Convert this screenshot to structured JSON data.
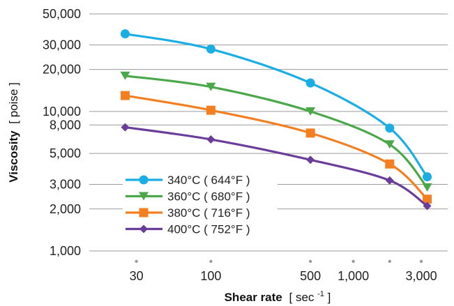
{
  "chart_data": {
    "type": "line",
    "xlabel": {
      "main": "Shear rate",
      "unit_open": "[ sec",
      "unit_sup": "-1",
      "unit_close": " ]"
    },
    "ylabel": {
      "main": "Viscosity",
      "unit": "[ poise ]"
    },
    "x_scale": "log",
    "y_scale": "log",
    "xlim": [
      14,
      4600
    ],
    "ylim": [
      1000,
      50000
    ],
    "x_ticks": [
      {
        "value": 30,
        "label": "30"
      },
      {
        "value": 100,
        "label": "100"
      },
      {
        "value": 500,
        "label": "500"
      },
      {
        "value": 1000,
        "label": "1,000"
      },
      {
        "value": 3000,
        "label": "3,000"
      }
    ],
    "x_tick_dots": [
      30,
      100,
      500,
      1000,
      1800,
      3000
    ],
    "y_ticks": [
      {
        "value": 50000,
        "label": "50,000"
      },
      {
        "value": 30000,
        "label": "30,000"
      },
      {
        "value": 20000,
        "label": "20,000"
      },
      {
        "value": 10000,
        "label": "10,000"
      },
      {
        "value": 8000,
        "label": "8,000"
      },
      {
        "value": 5000,
        "label": "5,000"
      },
      {
        "value": 3000,
        "label": "3,000"
      },
      {
        "value": 2000,
        "label": "2,000"
      },
      {
        "value": 1000,
        "label": "1,000"
      }
    ],
    "grid": "horizontal",
    "legend_position": "bottom-left",
    "series": [
      {
        "name": "340°C ( 644°F )",
        "color": "#1aaee5",
        "marker": "circle",
        "x": [
          25,
          100,
          500,
          1800,
          3300
        ],
        "y": [
          36000,
          28000,
          16000,
          7600,
          3400
        ]
      },
      {
        "name": "360°C ( 680°F )",
        "color": "#4aa84a",
        "marker": "triangle-down",
        "x": [
          25,
          100,
          500,
          1800,
          3300
        ],
        "y": [
          18000,
          15000,
          10000,
          5800,
          2850
        ]
      },
      {
        "name": "380°C ( 716°F )",
        "color": "#f47f20",
        "marker": "square",
        "x": [
          25,
          100,
          500,
          1800,
          3300
        ],
        "y": [
          13000,
          10200,
          7000,
          4200,
          2350
        ]
      },
      {
        "name": "400°C ( 752°F )",
        "color": "#6a3d9a",
        "marker": "diamond",
        "x": [
          25,
          100,
          500,
          1800,
          3300
        ],
        "y": [
          7700,
          6300,
          4500,
          3200,
          2100
        ]
      }
    ]
  }
}
